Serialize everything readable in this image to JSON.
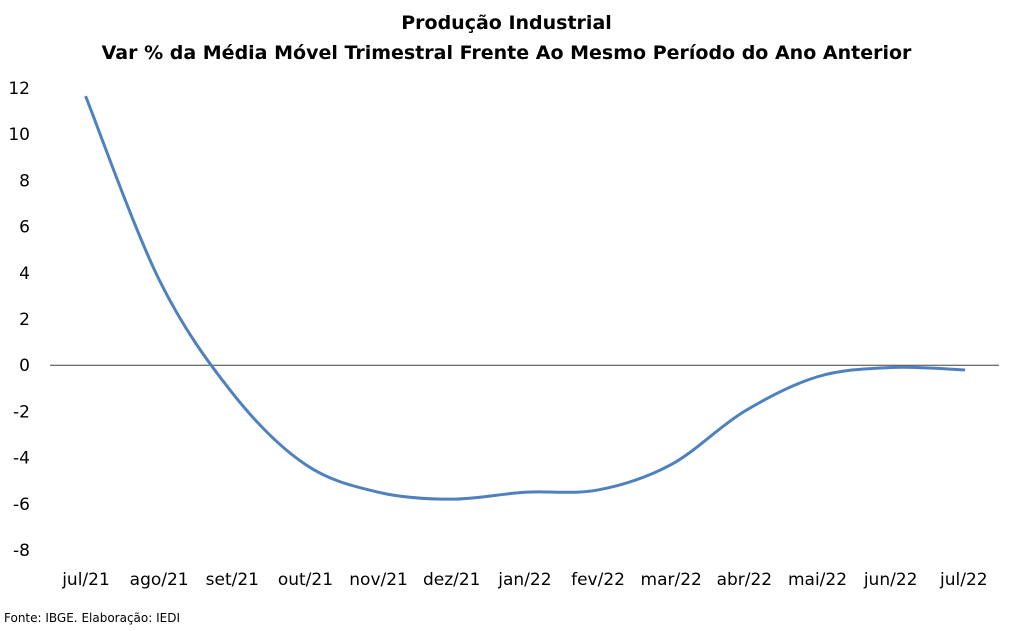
{
  "chart_data": {
    "type": "line",
    "title": "Produção Industrial",
    "subtitle": "Var % da Média Móvel Trimestral Frente Ao Mesmo Período do Ano Anterior",
    "xlabel": "",
    "ylabel": "",
    "categories": [
      "jul/21",
      "ago/21",
      "set/21",
      "out/21",
      "nov/21",
      "dez/21",
      "jan/22",
      "fev/22",
      "mar/22",
      "abr/22",
      "mai/22",
      "jun/22",
      "jul/22"
    ],
    "series": [
      {
        "values": [
          11.6,
          3.7,
          -1.2,
          -4.3,
          -5.5,
          -5.8,
          -5.5,
          -5.4,
          -4.3,
          -2.0,
          -0.5,
          -0.1,
          -0.2
        ],
        "color": "#4F81BD"
      }
    ],
    "ylim": [
      -8,
      12
    ],
    "yticks": [
      12,
      10,
      8,
      6,
      4,
      2,
      0,
      -2,
      -4,
      -6,
      -8
    ],
    "grid": false,
    "legend": "none",
    "zero_line_color": "#404040"
  },
  "source_note": "Fonte: IBGE. Elaboração: IEDI"
}
